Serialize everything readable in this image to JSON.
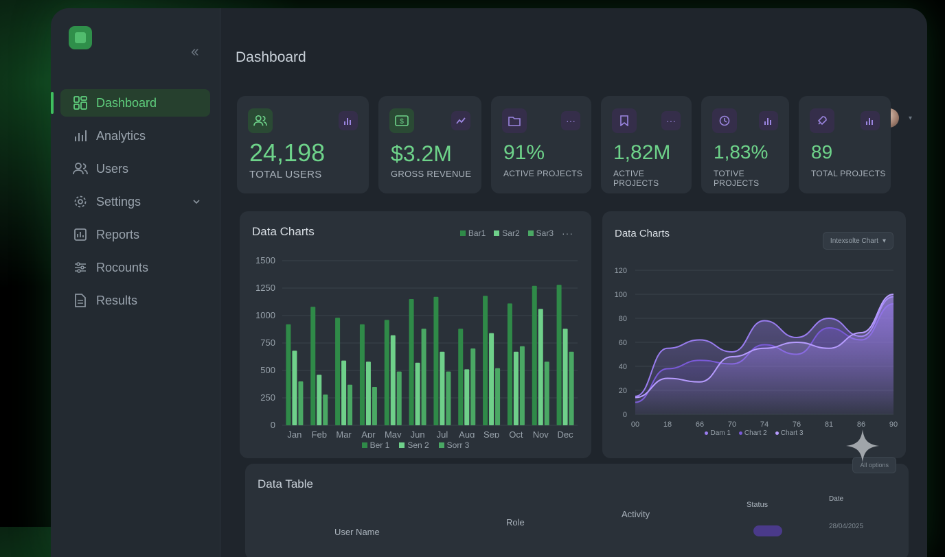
{
  "sidebar": {
    "collapse_icon": "double-chevron-left-icon",
    "items": [
      {
        "label": "Dashboard",
        "icon": "grid-icon",
        "active": true
      },
      {
        "label": "Analytics",
        "icon": "bar-chart-icon"
      },
      {
        "label": "Users",
        "icon": "users-icon"
      },
      {
        "label": "Settings",
        "icon": "gear-icon",
        "has_submenu": true
      },
      {
        "label": "Reports",
        "icon": "report-icon"
      },
      {
        "label": "Rocounts",
        "icon": "sliders-icon"
      },
      {
        "label": "Results",
        "icon": "document-icon"
      }
    ]
  },
  "header": {
    "title": "Dashboard"
  },
  "stats": [
    {
      "value": "24,198",
      "label": "TOTAL USERS"
    },
    {
      "value": "$3.2M",
      "label": "GROSS REVENUE"
    },
    {
      "value": "91%",
      "label": "ACTIVE PROJECTS"
    },
    {
      "value": "1,82M",
      "label": "ACTIVE PROJECTS"
    },
    {
      "value": "1,83%",
      "label": "TOTIVE PROJECTS"
    },
    {
      "value": "89",
      "label": "TOTAL PROJECTS"
    }
  ],
  "charts": {
    "bar_title": "Data Charts",
    "bar_top_legend": [
      "Bar1",
      "Sar2",
      "Sar3"
    ],
    "bar_bottom_legend": [
      "Ber 1",
      "Sen 2",
      "Sorr 3"
    ],
    "area_title": "Data Charts",
    "area_select": "Intexsolte Chart",
    "area_legend": [
      "Dam 1",
      "Chart 2",
      "Chart 3"
    ]
  },
  "chart_data": [
    {
      "type": "bar",
      "title": "Data Charts",
      "categories": [
        "Jan",
        "Feb",
        "Mar",
        "Apr",
        "May",
        "Jun",
        "Jul",
        "Aug",
        "Sep",
        "Oct",
        "Nov",
        "Dec"
      ],
      "ylim": [
        0,
        1500
      ],
      "yticks": [
        0,
        250,
        500,
        750,
        1000,
        1250,
        1500
      ],
      "grid": true,
      "legend": "top-right",
      "series": [
        {
          "name": "Bar1",
          "color": "#2f8a48",
          "values": [
            920,
            1080,
            980,
            920,
            960,
            1150,
            1170,
            880,
            1180,
            1110,
            1270,
            1280
          ]
        },
        {
          "name": "Sar2",
          "color": "#6fd08a",
          "values": [
            680,
            460,
            590,
            580,
            820,
            570,
            670,
            510,
            840,
            670,
            1060,
            880
          ]
        },
        {
          "name": "Sar3",
          "color": "#4aa864",
          "values": [
            400,
            280,
            370,
            350,
            490,
            880,
            490,
            700,
            520,
            720,
            580,
            670
          ]
        }
      ]
    },
    {
      "type": "area",
      "title": "Data Charts",
      "x": [
        "00",
        "18",
        "66",
        "70",
        "74",
        "76",
        "81",
        "86",
        "90"
      ],
      "ylim": [
        0,
        120
      ],
      "yticks": [
        0,
        20,
        40,
        60,
        80,
        100,
        120
      ],
      "grid": true,
      "legend": "bottom",
      "series": [
        {
          "name": "Dam 1",
          "color": "#9a7df0",
          "values": [
            15,
            55,
            62,
            52,
            78,
            64,
            80,
            65,
            98
          ]
        },
        {
          "name": "Chart 2",
          "color": "#7a5ad8",
          "values": [
            10,
            38,
            45,
            42,
            58,
            50,
            72,
            62,
            92
          ]
        },
        {
          "name": "Chart 3",
          "color": "#b79cff",
          "values": [
            14,
            30,
            27,
            48,
            55,
            60,
            55,
            68,
            100
          ]
        }
      ]
    }
  ],
  "table": {
    "title": "Data Table",
    "select_label": "All options",
    "headers": [
      "User Name",
      "Role",
      "Activity",
      "Status",
      "Date"
    ],
    "first_date": "28/04/2025"
  }
}
